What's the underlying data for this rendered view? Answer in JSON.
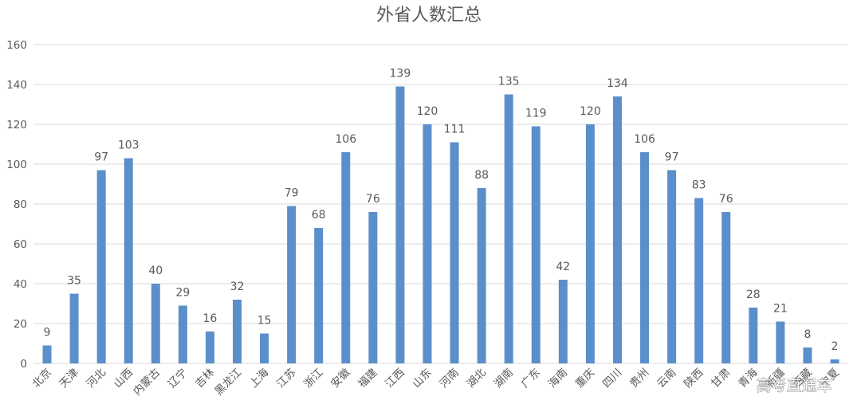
{
  "chart_data": {
    "type": "bar",
    "title": "外省人数汇总",
    "xlabel": "",
    "ylabel": "",
    "ylim": [
      0,
      160
    ],
    "yticks": [
      0,
      20,
      40,
      60,
      80,
      100,
      120,
      140,
      160
    ],
    "grid": true,
    "legend": null,
    "bar_color": "#5b8fcb",
    "categories": [
      "北京",
      "天津",
      "河北",
      "山西",
      "内蒙古",
      "辽宁",
      "吉林",
      "黑龙江",
      "上海",
      "江苏",
      "浙江",
      "安徽",
      "福建",
      "江西",
      "山东",
      "河南",
      "湖北",
      "湖南",
      "广东",
      "海南",
      "重庆",
      "四川",
      "贵州",
      "云南",
      "陕西",
      "甘肃",
      "青海",
      "新疆",
      "西藏",
      "宁夏"
    ],
    "values": [
      9,
      35,
      97,
      103,
      40,
      29,
      16,
      32,
      15,
      79,
      68,
      106,
      76,
      139,
      120,
      111,
      88,
      135,
      119,
      42,
      120,
      134,
      106,
      97,
      83,
      76,
      28,
      21,
      8,
      2
    ]
  },
  "watermark": "高考直通车"
}
